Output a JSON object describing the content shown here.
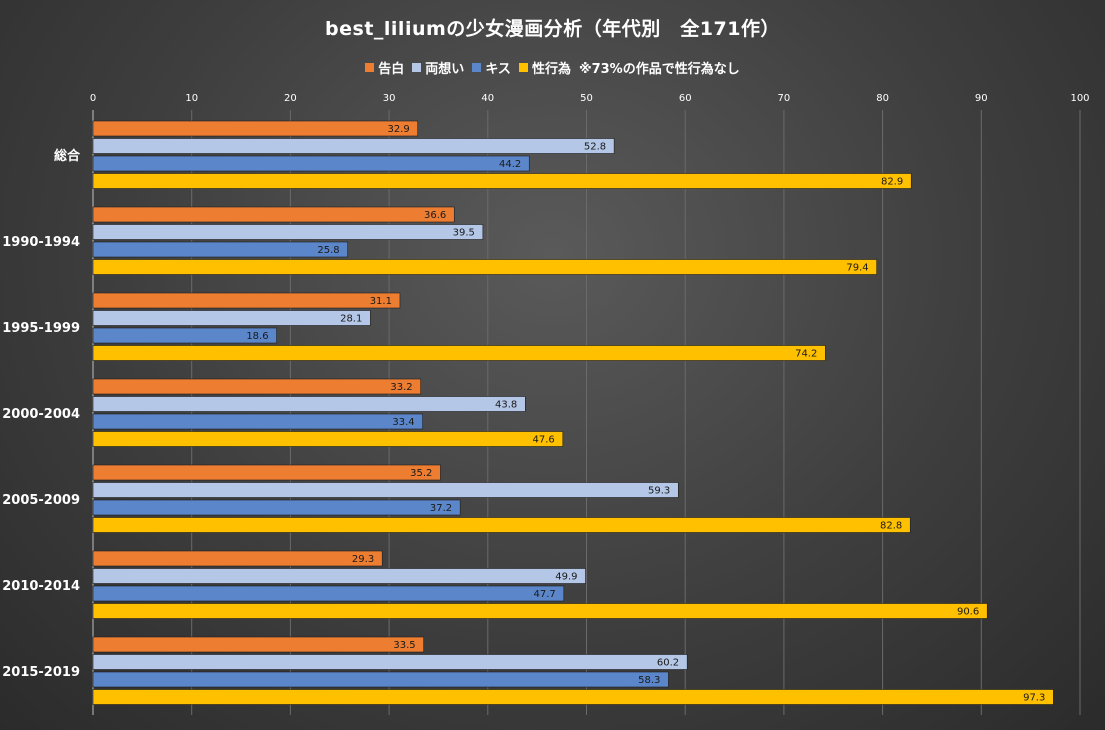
{
  "chart_data": {
    "type": "bar",
    "orientation": "horizontal",
    "title": "best_liliumの少女漫画分析（年代別　全171作）",
    "legend_note": "※73%の作品で性行為なし",
    "legend_position": "top",
    "categories": [
      "総合",
      "1990-1994",
      "1995-1999",
      "2000-2004",
      "2005-2009",
      "2010-2014",
      "2015-2019"
    ],
    "series": [
      {
        "name": "告白",
        "color": "#ED7D31",
        "values": [
          32.9,
          36.6,
          31.1,
          33.2,
          35.2,
          29.3,
          33.5
        ]
      },
      {
        "name": "両想い",
        "color": "#B4C7E7",
        "values": [
          52.8,
          39.5,
          28.1,
          43.8,
          59.3,
          49.9,
          60.2
        ]
      },
      {
        "name": "キス",
        "color": "#5B86C9",
        "values": [
          44.2,
          25.8,
          18.6,
          33.4,
          37.2,
          47.7,
          58.3
        ]
      },
      {
        "name": "性行為",
        "color": "#FFC000",
        "values": [
          82.9,
          79.4,
          74.2,
          47.6,
          82.8,
          90.6,
          97.3
        ]
      }
    ],
    "xlim": [
      0,
      100
    ],
    "xticks": [
      "0",
      "10",
      "20",
      "30",
      "40",
      "50",
      "60",
      "70",
      "80",
      "90",
      "100"
    ],
    "xaxis_position": "top",
    "grid": true
  }
}
